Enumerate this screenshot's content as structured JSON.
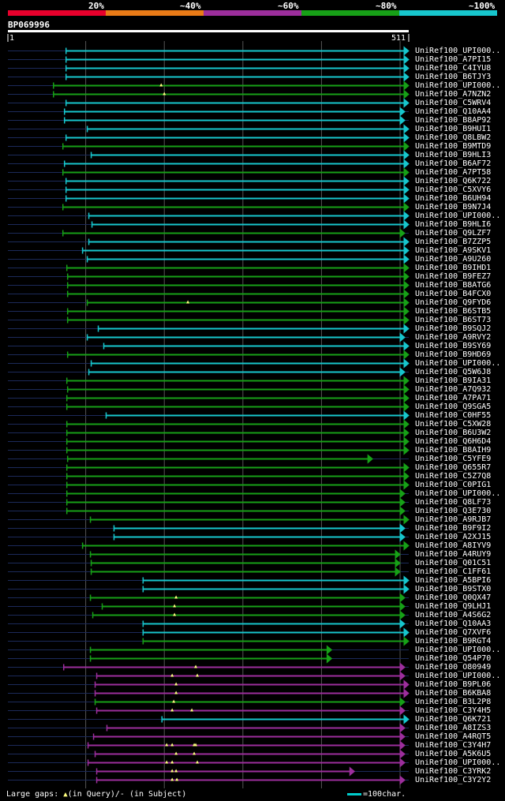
{
  "query": {
    "name": "BP069996",
    "start_label": "1",
    "end_label": "511",
    "length": 511
  },
  "legend": {
    "items": [
      {
        "label": "20%",
        "color": "#e8002c"
      },
      {
        "label": "~40%",
        "color": "#ea7b17"
      },
      {
        "label": "~60%",
        "color": "#9c2e9c"
      },
      {
        "label": "~80%",
        "color": "#17a017"
      },
      {
        "label": "~100%",
        "color": "#17c6cd"
      }
    ]
  },
  "footer": {
    "gaps_label": "Large gaps:",
    "query_gap_label": "(in Query)/-",
    "subject_gap_label": "(in Subject)",
    "scale_label": "=100char."
  },
  "chart_data": {
    "type": "alignment-overview",
    "x_range": [
      1,
      511
    ],
    "x_gridlines": [
      100,
      200,
      300,
      400,
      500
    ],
    "color_key": {
      "c": "~100%",
      "g": "~80%",
      "p": "~60%"
    },
    "hits": [
      {
        "name": "UniRef100_UPI000..",
        "start": 75,
        "end": 511,
        "color": "c",
        "marks": []
      },
      {
        "name": "UniRef100_A7PI15",
        "start": 75,
        "end": 511,
        "color": "c",
        "marks": []
      },
      {
        "name": "UniRef100_C4IYU8",
        "start": 75,
        "end": 511,
        "color": "c",
        "marks": []
      },
      {
        "name": "UniRef100_B6TJY3",
        "start": 75,
        "end": 511,
        "color": "c",
        "marks": []
      },
      {
        "name": "UniRef100_UPI000..",
        "start": 59,
        "end": 511,
        "color": "g",
        "marks": [
          196
        ]
      },
      {
        "name": "UniRef100_A7NZN2",
        "start": 59,
        "end": 511,
        "color": "g",
        "marks": [
          200
        ]
      },
      {
        "name": "UniRef100_C5WRV4",
        "start": 75,
        "end": 511,
        "color": "c",
        "marks": []
      },
      {
        "name": "UniRef100_Q10AA4",
        "start": 73,
        "end": 506,
        "color": "c",
        "marks": []
      },
      {
        "name": "UniRef100_B8AP92",
        "start": 73,
        "end": 506,
        "color": "c",
        "marks": []
      },
      {
        "name": "UniRef100_B9HUI1",
        "start": 102,
        "end": 511,
        "color": "c",
        "marks": []
      },
      {
        "name": "UniRef100_Q8LBW2",
        "start": 75,
        "end": 511,
        "color": "c",
        "marks": []
      },
      {
        "name": "UniRef100_B9MTD9",
        "start": 71,
        "end": 511,
        "color": "g",
        "marks": []
      },
      {
        "name": "UniRef100_B9HLI3",
        "start": 107,
        "end": 511,
        "color": "c",
        "marks": []
      },
      {
        "name": "UniRef100_B6AF72",
        "start": 73,
        "end": 511,
        "color": "c",
        "marks": []
      },
      {
        "name": "UniRef100_A7PT58",
        "start": 71,
        "end": 511,
        "color": "g",
        "marks": []
      },
      {
        "name": "UniRef100_Q6K722",
        "start": 75,
        "end": 511,
        "color": "c",
        "marks": []
      },
      {
        "name": "UniRef100_C5XVY6",
        "start": 75,
        "end": 511,
        "color": "c",
        "marks": []
      },
      {
        "name": "UniRef100_B6UH94",
        "start": 75,
        "end": 511,
        "color": "c",
        "marks": []
      },
      {
        "name": "UniRef100_B9N7J4",
        "start": 71,
        "end": 511,
        "color": "g",
        "marks": []
      },
      {
        "name": "UniRef100_UPI000..",
        "start": 104,
        "end": 511,
        "color": "c",
        "marks": []
      },
      {
        "name": "UniRef100_B9HLI6",
        "start": 108,
        "end": 511,
        "color": "c",
        "marks": []
      },
      {
        "name": "UniRef100_Q9LZF7",
        "start": 71,
        "end": 506,
        "color": "g",
        "marks": []
      },
      {
        "name": "UniRef100_B7ZZP5",
        "start": 104,
        "end": 511,
        "color": "c",
        "marks": []
      },
      {
        "name": "UniRef100_A9SKV1",
        "start": 96,
        "end": 511,
        "color": "c",
        "marks": []
      },
      {
        "name": "UniRef100_A9U260",
        "start": 102,
        "end": 511,
        "color": "c",
        "marks": []
      },
      {
        "name": "UniRef100_B9IHD1",
        "start": 76,
        "end": 511,
        "color": "g",
        "marks": []
      },
      {
        "name": "UniRef100_B9FEZ7",
        "start": 77,
        "end": 511,
        "color": "g",
        "marks": []
      },
      {
        "name": "UniRef100_B8ATG6",
        "start": 77,
        "end": 511,
        "color": "g",
        "marks": []
      },
      {
        "name": "UniRef100_B4FCX0",
        "start": 77,
        "end": 511,
        "color": "g",
        "marks": []
      },
      {
        "name": "UniRef100_Q9FYD6",
        "start": 102,
        "end": 511,
        "color": "g",
        "marks": [
          230
        ]
      },
      {
        "name": "UniRef100_B6STB5",
        "start": 77,
        "end": 511,
        "color": "g",
        "marks": []
      },
      {
        "name": "UniRef100_B6ST73",
        "start": 77,
        "end": 511,
        "color": "g",
        "marks": []
      },
      {
        "name": "UniRef100_B9SQJ2",
        "start": 116,
        "end": 511,
        "color": "c",
        "marks": []
      },
      {
        "name": "UniRef100_A9RVY2",
        "start": 102,
        "end": 506,
        "color": "c",
        "marks": []
      },
      {
        "name": "UniRef100_B9SY69",
        "start": 123,
        "end": 511,
        "color": "c",
        "marks": []
      },
      {
        "name": "UniRef100_B9HD69",
        "start": 77,
        "end": 511,
        "color": "g",
        "marks": []
      },
      {
        "name": "UniRef100_UPI000..",
        "start": 107,
        "end": 511,
        "color": "c",
        "marks": []
      },
      {
        "name": "UniRef100_Q5W6J8",
        "start": 104,
        "end": 506,
        "color": "c",
        "marks": []
      },
      {
        "name": "UniRef100_B9IA31",
        "start": 76,
        "end": 511,
        "color": "g",
        "marks": []
      },
      {
        "name": "UniRef100_A7Q932",
        "start": 77,
        "end": 511,
        "color": "g",
        "marks": []
      },
      {
        "name": "UniRef100_A7PA71",
        "start": 76,
        "end": 511,
        "color": "g",
        "marks": []
      },
      {
        "name": "UniRef100_Q9SGA5",
        "start": 76,
        "end": 511,
        "color": "g",
        "marks": []
      },
      {
        "name": "UniRef100_C0HF55",
        "start": 126,
        "end": 511,
        "color": "c",
        "marks": []
      },
      {
        "name": "UniRef100_C5XW28",
        "start": 76,
        "end": 511,
        "color": "g",
        "marks": []
      },
      {
        "name": "UniRef100_B6U3W2",
        "start": 76,
        "end": 511,
        "color": "g",
        "marks": []
      },
      {
        "name": "UniRef100_Q6H6D4",
        "start": 76,
        "end": 511,
        "color": "g",
        "marks": []
      },
      {
        "name": "UniRef100_B8AIH9",
        "start": 76,
        "end": 511,
        "color": "g",
        "marks": []
      },
      {
        "name": "UniRef100_C5YFE9",
        "start": 77,
        "end": 465,
        "color": "g",
        "marks": []
      },
      {
        "name": "UniRef100_Q655R7",
        "start": 76,
        "end": 511,
        "color": "g",
        "marks": []
      },
      {
        "name": "UniRef100_C5Z7Q8",
        "start": 76,
        "end": 511,
        "color": "g",
        "marks": []
      },
      {
        "name": "UniRef100_C0PIG1",
        "start": 76,
        "end": 511,
        "color": "g",
        "marks": []
      },
      {
        "name": "UniRef100_UPI000..",
        "start": 76,
        "end": 506,
        "color": "g",
        "marks": []
      },
      {
        "name": "UniRef100_Q8LF73",
        "start": 76,
        "end": 506,
        "color": "g",
        "marks": []
      },
      {
        "name": "UniRef100_Q3E730",
        "start": 76,
        "end": 506,
        "color": "g",
        "marks": []
      },
      {
        "name": "UniRef100_A9RJB7",
        "start": 106,
        "end": 511,
        "color": "g",
        "marks": []
      },
      {
        "name": "UniRef100_B9F9I2",
        "start": 136,
        "end": 506,
        "color": "c",
        "marks": []
      },
      {
        "name": "UniRef100_A2XJ15",
        "start": 136,
        "end": 506,
        "color": "c",
        "marks": []
      },
      {
        "name": "UniRef100_A8IYV9",
        "start": 96,
        "end": 511,
        "color": "g",
        "marks": []
      },
      {
        "name": "UniRef100_A4RUY9",
        "start": 106,
        "end": 500,
        "color": "g",
        "marks": []
      },
      {
        "name": "UniRef100_Q01C51",
        "start": 107,
        "end": 500,
        "color": "g",
        "marks": []
      },
      {
        "name": "UniRef100_C1FF61",
        "start": 107,
        "end": 500,
        "color": "g",
        "marks": []
      },
      {
        "name": "UniRef100_A5BPI6",
        "start": 173,
        "end": 511,
        "color": "c",
        "marks": []
      },
      {
        "name": "UniRef100_B9STX0",
        "start": 173,
        "end": 511,
        "color": "c",
        "marks": []
      },
      {
        "name": "UniRef100_Q0QX47",
        "start": 106,
        "end": 506,
        "color": "g",
        "marks": [
          215
        ]
      },
      {
        "name": "UniRef100_Q9LHJ1",
        "start": 121,
        "end": 506,
        "color": "g",
        "marks": [
          213
        ]
      },
      {
        "name": "UniRef100_A4S6G2",
        "start": 109,
        "end": 506,
        "color": "g",
        "marks": [
          213
        ]
      },
      {
        "name": "UniRef100_Q10AA3",
        "start": 173,
        "end": 506,
        "color": "c",
        "marks": []
      },
      {
        "name": "UniRef100_Q7XVF6",
        "start": 173,
        "end": 511,
        "color": "c",
        "marks": []
      },
      {
        "name": "UniRef100_B9RGT4",
        "start": 173,
        "end": 511,
        "color": "g",
        "marks": []
      },
      {
        "name": "UniRef100_UPI000..",
        "start": 106,
        "end": 413,
        "color": "g",
        "marks": []
      },
      {
        "name": "UniRef100_Q54P70",
        "start": 106,
        "end": 413,
        "color": "g",
        "marks": []
      },
      {
        "name": "UniRef100_O80949",
        "start": 72,
        "end": 506,
        "color": "p",
        "marks": [
          240
        ]
      },
      {
        "name": "UniRef100_UPI000..",
        "start": 114,
        "end": 506,
        "color": "p",
        "marks": [
          210,
          242
        ]
      },
      {
        "name": "UniRef100_B9PL06",
        "start": 112,
        "end": 511,
        "color": "p",
        "marks": [
          215
        ]
      },
      {
        "name": "UniRef100_B6KBA8",
        "start": 112,
        "end": 511,
        "color": "p",
        "marks": [
          215
        ]
      },
      {
        "name": "UniRef100_B3L2P8",
        "start": 112,
        "end": 506,
        "color": "g",
        "marks": [
          212
        ]
      },
      {
        "name": "UniRef100_C3Y4H5",
        "start": 114,
        "end": 506,
        "color": "p",
        "marks": [
          210,
          235
        ]
      },
      {
        "name": "UniRef100_Q6K721",
        "start": 197,
        "end": 511,
        "color": "c",
        "marks": []
      },
      {
        "name": "UniRef100_A8IZS3",
        "start": 127,
        "end": 506,
        "color": "p",
        "marks": []
      },
      {
        "name": "UniRef100_A4RQT5",
        "start": 110,
        "end": 506,
        "color": "p",
        "marks": []
      },
      {
        "name": "UniRef100_C3Y4H7",
        "start": 103,
        "end": 506,
        "color": "p",
        "marks": [
          203,
          210,
          238,
          240
        ]
      },
      {
        "name": "UniRef100_A5K6U5",
        "start": 112,
        "end": 506,
        "color": "p",
        "marks": [
          215,
          238
        ]
      },
      {
        "name": "UniRef100_UPI000..",
        "start": 103,
        "end": 506,
        "color": "p",
        "marks": [
          203,
          210,
          242
        ]
      },
      {
        "name": "UniRef100_C3YRK2",
        "start": 114,
        "end": 442,
        "color": "p",
        "marks": [
          210,
          215
        ]
      },
      {
        "name": "UniRef100_C3Y2Y2",
        "start": 114,
        "end": 506,
        "color": "p",
        "marks": [
          210,
          216
        ]
      }
    ]
  }
}
